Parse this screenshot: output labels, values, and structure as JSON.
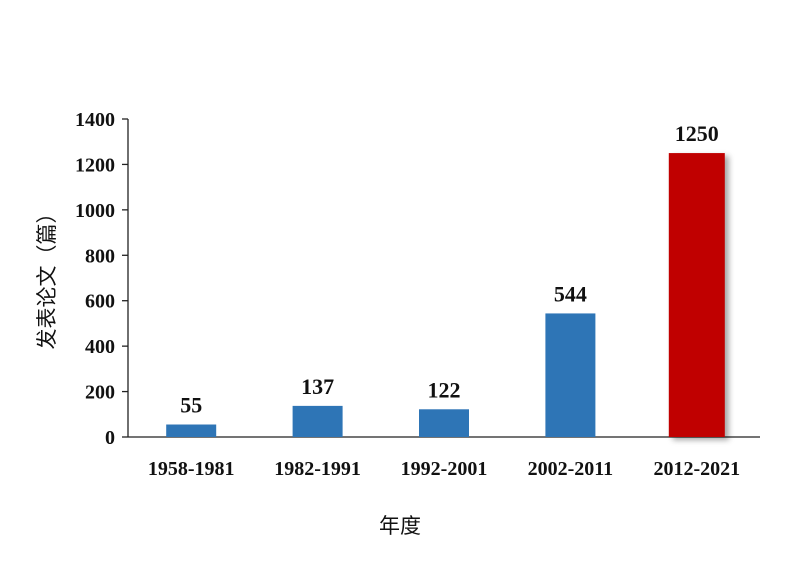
{
  "chart_data": {
    "type": "bar",
    "categories": [
      "1958-1981",
      "1982-1991",
      "1992-2001",
      "2002-2011",
      "2012-2021"
    ],
    "values": [
      55,
      137,
      122,
      544,
      1250
    ],
    "value_labels": [
      "55",
      "137",
      "122",
      "544",
      "1250"
    ],
    "colors": [
      "#2e75b6",
      "#2e75b6",
      "#2e75b6",
      "#2e75b6",
      "#c00000"
    ],
    "xlabel": "年度",
    "ylabel": "发表论文（篇）",
    "ylim": [
      0,
      1400
    ],
    "yticks": [
      0,
      200,
      400,
      600,
      800,
      1000,
      1200,
      1400
    ],
    "grid": false,
    "legend": "none"
  }
}
